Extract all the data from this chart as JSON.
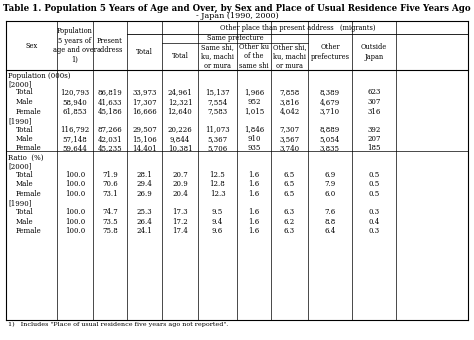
{
  "title": "Table 1. Population 5 Years of Age and Over, by Sex and Place of Usual Residence Five Years Ago",
  "subtitle": "- Japan (1990, 2000)",
  "footnote": "1)   Includes \"Place of usual residence five years ago not reported\".",
  "sections": [
    {
      "label": "Population (000s)",
      "subsections": [
        {
          "label": "[2000]",
          "rows": [
            [
              "Total",
              "120,793",
              "86,819",
              "33,973",
              "24,961",
              "15,137",
              "1,966",
              "7,858",
              "8,389",
              "623"
            ],
            [
              "Male",
              "58,940",
              "41,633",
              "17,307",
              "12,321",
              "7,554",
              "952",
              "3,816",
              "4,679",
              "307"
            ],
            [
              "Female",
              "61,853",
              "45,186",
              "16,666",
              "12,640",
              "7,583",
              "1,015",
              "4,042",
              "3,710",
              "316"
            ]
          ]
        },
        {
          "label": "[1990]",
          "rows": [
            [
              "Total",
              "116,792",
              "87,266",
              "29,507",
              "20,226",
              "11,073",
              "1,846",
              "7,307",
              "8,889",
              "392"
            ],
            [
              "Male",
              "57,148",
              "42,031",
              "15,106",
              "9,844",
              "5,367",
              "910",
              "3,567",
              "5,054",
              "207"
            ],
            [
              "Female",
              "59,644",
              "45,235",
              "14,401",
              "10,381",
              "5,706",
              "935",
              "3,740",
              "3,835",
              "185"
            ]
          ]
        }
      ]
    },
    {
      "label": "Ratio  (%)",
      "subsections": [
        {
          "label": "[2000]",
          "rows": [
            [
              "Total",
              "100.0",
              "71.9",
              "28.1",
              "20.7",
              "12.5",
              "1.6",
              "6.5",
              "6.9",
              "0.5"
            ],
            [
              "Male",
              "100.0",
              "70.6",
              "29.4",
              "20.9",
              "12.8",
              "1.6",
              "6.5",
              "7.9",
              "0.5"
            ],
            [
              "Female",
              "100.0",
              "73.1",
              "26.9",
              "20.4",
              "12.3",
              "1.6",
              "6.5",
              "6.0",
              "0.5"
            ]
          ]
        },
        {
          "label": "[1990]",
          "rows": [
            [
              "Total",
              "100.0",
              "74.7",
              "25.3",
              "17.3",
              "9.5",
              "1.6",
              "6.3",
              "7.6",
              "0.3"
            ],
            [
              "Male",
              "100.0",
              "73.5",
              "26.4",
              "17.2",
              "9.4",
              "1.6",
              "6.2",
              "8.8",
              "0.4"
            ],
            [
              "Female",
              "100.0",
              "75.8",
              "24.1",
              "17.4",
              "9.6",
              "1.6",
              "6.3",
              "6.4",
              "0.3"
            ]
          ]
        }
      ]
    }
  ]
}
